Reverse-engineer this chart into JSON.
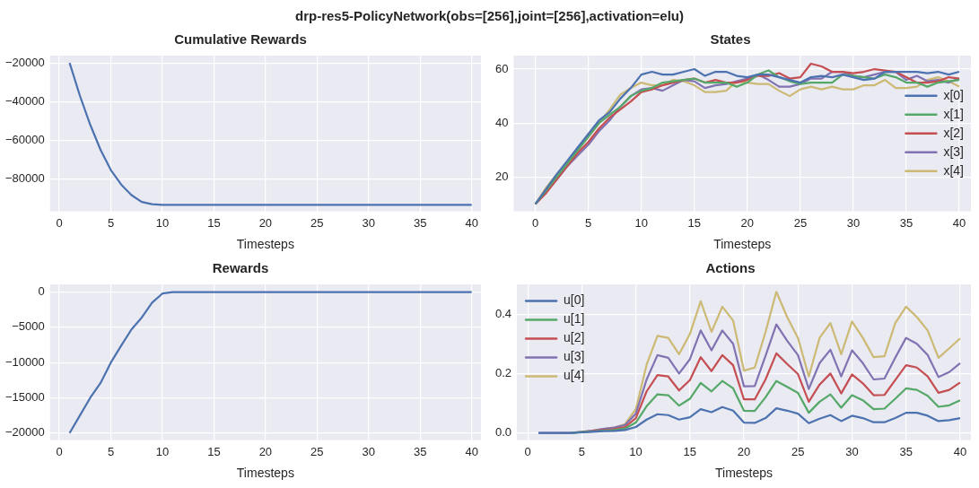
{
  "chart_data": [
    {
      "type": "line",
      "title": "Cumulative Rewards",
      "xlabel": "Timesteps",
      "annotations": [
        "drp-res5-PolicyNetwork(obs=[256],joint=[256],activation=elu)"
      ],
      "x": [
        1,
        2,
        3,
        4,
        5,
        6,
        7,
        8,
        9,
        10,
        11,
        12,
        13,
        14,
        15,
        16,
        17,
        18,
        19,
        20,
        21,
        22,
        23,
        24,
        25,
        26,
        27,
        28,
        29,
        30,
        31,
        32,
        33,
        34,
        35,
        36,
        37,
        38,
        39,
        40
      ],
      "series": [
        {
          "color": "#4c72b0",
          "values": [
            -20000,
            -37000,
            -52000,
            -65000,
            -75500,
            -83000,
            -88500,
            -92000,
            -93200,
            -93500,
            -93500,
            -93500,
            -93500,
            -93500,
            -93500,
            -93500,
            -93500,
            -93500,
            -93500,
            -93500,
            -93500,
            -93500,
            -93500,
            -93500,
            -93500,
            -93500,
            -93500,
            -93500,
            -93500,
            -93500,
            -93500,
            -93500,
            -93500,
            -93500,
            -93500,
            -93500,
            -93500,
            -93500,
            -93500,
            -93500
          ]
        }
      ],
      "xlim": [
        -0.9,
        40.9
      ],
      "xticks": [
        0,
        5,
        10,
        15,
        20,
        25,
        30,
        35,
        40
      ],
      "ylim": [
        -96900,
        -16200
      ],
      "yticks": [
        -80000,
        -60000,
        -40000,
        -20000
      ],
      "grid": true
    },
    {
      "type": "line",
      "title": "States",
      "xlabel": "Timesteps",
      "legend": "right",
      "x": [
        0,
        1,
        2,
        3,
        4,
        5,
        6,
        7,
        8,
        9,
        10,
        11,
        12,
        13,
        14,
        15,
        16,
        17,
        18,
        19,
        20,
        21,
        22,
        23,
        24,
        25,
        26,
        27,
        28,
        29,
        30,
        31,
        32,
        33,
        34,
        35,
        36,
        37,
        38,
        39,
        40
      ],
      "series": [
        {
          "name": "x[0]",
          "color": "#4c72b0",
          "values": [
            10,
            15.5,
            21,
            26,
            31,
            36,
            41,
            44,
            49,
            53,
            58,
            59,
            58,
            58,
            59,
            60,
            57.5,
            59,
            59,
            57.5,
            57,
            58,
            58,
            57,
            56,
            55,
            57,
            57.5,
            57,
            58,
            57,
            56,
            56.5,
            59,
            59,
            59,
            59,
            58.5,
            59,
            58,
            59
          ]
        },
        {
          "name": "x[1]",
          "color": "#55a868",
          "values": [
            10,
            15,
            20,
            25,
            30,
            35,
            40,
            43,
            46,
            50,
            52,
            53,
            55,
            55.5,
            56,
            56.5,
            55,
            55,
            55,
            53.5,
            55,
            58,
            59.5,
            57,
            55.5,
            54.5,
            55,
            55,
            55,
            58,
            57.5,
            57,
            56.5,
            58,
            57,
            55,
            55,
            53.5,
            55,
            55.5,
            56
          ]
        },
        {
          "name": "x[2]",
          "color": "#c44e52",
          "values": [
            10,
            14,
            19,
            24,
            29,
            33,
            38,
            42,
            45,
            48,
            51.5,
            52.5,
            54,
            55,
            56,
            56.5,
            55,
            56,
            55,
            55,
            56,
            57.5,
            57.5,
            58.5,
            56.5,
            57,
            62,
            61,
            59,
            59,
            58.5,
            59,
            60,
            59.5,
            59,
            57,
            55,
            55,
            55.5,
            57,
            56.5
          ]
        },
        {
          "name": "x[3]",
          "color": "#8172b2",
          "values": [
            10,
            14.5,
            19,
            24,
            28,
            32,
            37,
            41,
            46,
            50,
            52.5,
            53,
            52,
            54,
            56,
            55.5,
            53,
            54,
            54.5,
            55.5,
            56.5,
            58,
            56,
            53.5,
            53.5,
            54.5,
            56.5,
            56.5,
            59,
            59,
            57.5,
            57,
            58,
            59,
            59,
            56,
            57.5,
            55.5,
            56,
            55,
            56.5
          ]
        },
        {
          "name": "x[4]",
          "color": "#ccb974",
          "values": [
            10,
            16,
            21,
            25,
            30,
            35,
            40,
            45,
            50.5,
            53,
            55,
            54,
            54,
            56,
            55.5,
            54,
            51.5,
            51.5,
            52,
            55.5,
            55,
            54.5,
            54.5,
            52,
            50,
            52.5,
            53.5,
            52.5,
            53.5,
            52.5,
            52.5,
            54,
            54,
            56,
            53,
            53,
            53.5,
            56,
            57,
            55.5,
            53.5
          ]
        }
      ],
      "xlim": [
        -2.05,
        41.1
      ],
      "xticks": [
        0,
        5,
        10,
        15,
        20,
        25,
        30,
        35,
        40
      ],
      "ylim": [
        7.3,
        65
      ],
      "yticks": [
        20,
        40,
        60
      ],
      "grid": true
    },
    {
      "type": "line",
      "title": "Rewards",
      "xlabel": "Timesteps",
      "x": [
        1,
        2,
        3,
        4,
        5,
        6,
        7,
        8,
        9,
        10,
        11,
        12,
        13,
        14,
        15,
        16,
        17,
        18,
        19,
        20,
        21,
        22,
        23,
        24,
        25,
        26,
        27,
        28,
        29,
        30,
        31,
        32,
        33,
        34,
        35,
        36,
        37,
        38,
        39,
        40
      ],
      "series": [
        {
          "color": "#4c72b0",
          "values": [
            -20000,
            -17500,
            -15000,
            -12900,
            -10000,
            -7600,
            -5300,
            -3600,
            -1500,
            -200,
            0,
            0,
            0,
            0,
            0,
            0,
            0,
            0,
            0,
            0,
            0,
            0,
            0,
            0,
            0,
            0,
            0,
            0,
            0,
            0,
            0,
            0,
            0,
            0,
            0,
            0,
            0,
            0,
            0,
            0
          ]
        }
      ],
      "xlim": [
        -0.9,
        40.9
      ],
      "xticks": [
        0,
        5,
        10,
        15,
        20,
        25,
        30,
        35,
        40
      ],
      "ylim": [
        -21000,
        1100
      ],
      "yticks": [
        -20000,
        -15000,
        -10000,
        -5000,
        0
      ],
      "grid": true
    },
    {
      "type": "line",
      "title": "Actions",
      "xlabel": "Timesteps",
      "legend": "top left",
      "x": [
        1,
        2,
        3,
        4,
        5,
        6,
        7,
        8,
        9,
        10,
        11,
        12,
        13,
        14,
        15,
        16,
        17,
        18,
        19,
        20,
        21,
        22,
        23,
        24,
        25,
        26,
        27,
        28,
        29,
        30,
        31,
        32,
        33,
        34,
        35,
        36,
        37,
        38,
        39,
        40
      ],
      "series": [
        {
          "name": "u[0]",
          "color": "#4c72b0",
          "values": [
            0,
            0,
            0,
            0,
            0.002,
            0.004,
            0.006,
            0.007,
            0.01,
            0.02,
            0.045,
            0.063,
            0.06,
            0.045,
            0.053,
            0.08,
            0.07,
            0.087,
            0.075,
            0.035,
            0.034,
            0.05,
            0.083,
            0.075,
            0.065,
            0.033,
            0.048,
            0.06,
            0.04,
            0.058,
            0.05,
            0.036,
            0.036,
            0.05,
            0.068,
            0.068,
            0.058,
            0.04,
            0.043,
            0.05
          ]
        },
        {
          "name": "u[1]",
          "color": "#55a868",
          "values": [
            null,
            null,
            null,
            0,
            0.003,
            0.005,
            0.008,
            0.01,
            0.015,
            0.035,
            0.09,
            0.13,
            0.127,
            0.092,
            0.115,
            0.168,
            0.14,
            0.175,
            0.15,
            0.075,
            0.074,
            0.12,
            0.175,
            0.155,
            0.135,
            0.068,
            0.105,
            0.13,
            0.085,
            0.127,
            0.11,
            0.08,
            0.082,
            0.115,
            0.15,
            0.145,
            0.125,
            0.088,
            0.093,
            0.11
          ]
        },
        {
          "name": "u[2]",
          "color": "#c44e52",
          "values": [
            null,
            null,
            null,
            null,
            0.003,
            0.006,
            0.01,
            0.013,
            0.02,
            0.05,
            0.14,
            0.195,
            0.19,
            0.143,
            0.178,
            0.255,
            0.208,
            0.262,
            0.228,
            0.113,
            0.113,
            0.18,
            0.268,
            0.232,
            0.198,
            0.105,
            0.163,
            0.2,
            0.133,
            0.197,
            0.167,
            0.127,
            0.128,
            0.178,
            0.228,
            0.22,
            0.19,
            0.135,
            0.145,
            0.17
          ]
        },
        {
          "name": "u[3]",
          "color": "#8172b2",
          "values": [
            0,
            0,
            0,
            0,
            0.004,
            0.008,
            0.014,
            0.018,
            0.027,
            0.065,
            0.18,
            0.262,
            0.253,
            0.2,
            0.248,
            0.345,
            0.278,
            0.345,
            0.3,
            0.157,
            0.158,
            0.26,
            0.365,
            0.31,
            0.262,
            0.148,
            0.235,
            0.28,
            0.19,
            0.278,
            0.235,
            0.18,
            0.183,
            0.253,
            0.32,
            0.3,
            0.262,
            0.188,
            0.205,
            0.235
          ]
        },
        {
          "name": "u[4]",
          "color": "#ccb974",
          "values": [
            null,
            null,
            0,
            0,
            0.004,
            0.008,
            0.014,
            0.018,
            0.03,
            0.08,
            0.23,
            0.327,
            0.32,
            0.265,
            0.333,
            0.443,
            0.34,
            0.425,
            0.378,
            0.21,
            0.22,
            0.34,
            0.475,
            0.39,
            0.32,
            0.19,
            0.32,
            0.37,
            0.265,
            0.375,
            0.32,
            0.255,
            0.258,
            0.37,
            0.425,
            0.39,
            0.345,
            0.253,
            0.285,
            0.318
          ]
        }
      ],
      "xlim": [
        -1,
        41
      ],
      "xticks": [
        0,
        5,
        10,
        15,
        20,
        25,
        30,
        35,
        40
      ],
      "ylim": [
        -0.024,
        0.5
      ],
      "yticks": [
        {
          "value": 0,
          "label": "0.0"
        },
        {
          "value": 0.2,
          "label": "0.2"
        },
        {
          "value": 0.4,
          "label": "0.4"
        }
      ],
      "grid": true
    }
  ]
}
